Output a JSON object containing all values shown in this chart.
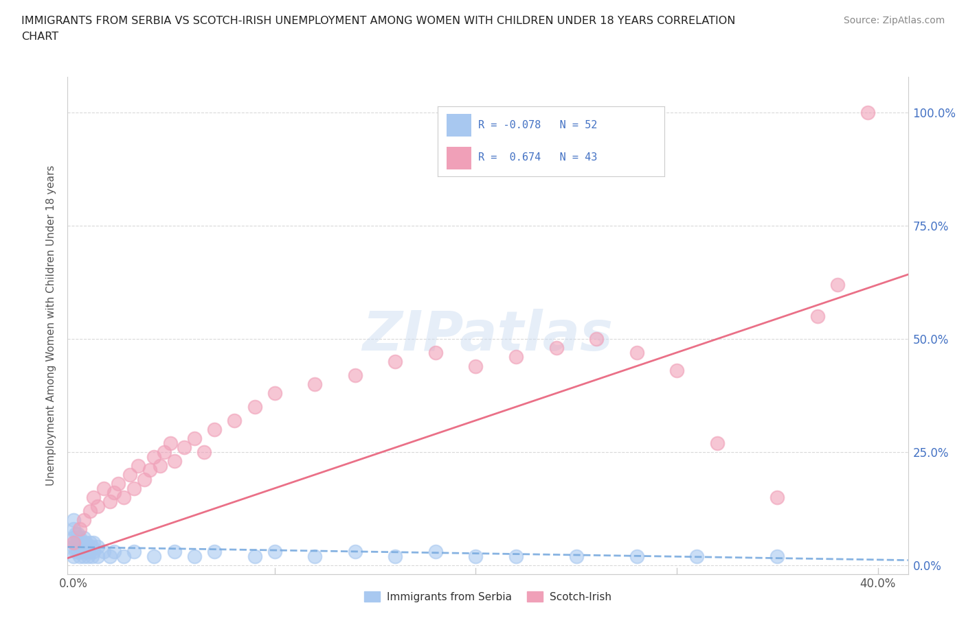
{
  "title_line1": "IMMIGRANTS FROM SERBIA VS SCOTCH-IRISH UNEMPLOYMENT AMONG WOMEN WITH CHILDREN UNDER 18 YEARS CORRELATION",
  "title_line2": "CHART",
  "source_text": "Source: ZipAtlas.com",
  "ylabel": "Unemployment Among Women with Children Under 18 years",
  "watermark": "ZIPatlas",
  "serbia_color": "#a8c8f0",
  "scotch_color": "#f0a0b8",
  "serbia_line_color": "#7aabdf",
  "scotch_line_color": "#e8607a",
  "legend_r_color": "#4472c4",
  "serbia_R": -0.078,
  "serbia_N": 52,
  "scotch_R": 0.674,
  "scotch_N": 43,
  "serbia_label": "Immigrants from Serbia",
  "scotch_label": "Scotch-Irish",
  "xlim_min": -0.003,
  "xlim_max": 0.415,
  "ylim_min": -0.02,
  "ylim_max": 1.08,
  "ytick_vals": [
    0.0,
    0.25,
    0.5,
    0.75,
    1.0
  ],
  "ytick_labels_right": [
    "0.0%",
    "25.0%",
    "50.0%",
    "75.0%",
    "100.0%"
  ],
  "xtick_vals": [
    0.0,
    0.1,
    0.2,
    0.3,
    0.4
  ],
  "xtick_labels": [
    "0.0%",
    "",
    "",
    "",
    "40.0%"
  ],
  "serbia_x": [
    0.0,
    0.0,
    0.0,
    0.0,
    0.0,
    0.001,
    0.001,
    0.001,
    0.002,
    0.002,
    0.002,
    0.003,
    0.003,
    0.003,
    0.004,
    0.004,
    0.005,
    0.005,
    0.005,
    0.006,
    0.006,
    0.007,
    0.007,
    0.008,
    0.008,
    0.009,
    0.009,
    0.01,
    0.01,
    0.012,
    0.012,
    0.015,
    0.018,
    0.02,
    0.025,
    0.03,
    0.04,
    0.05,
    0.06,
    0.07,
    0.09,
    0.1,
    0.12,
    0.14,
    0.16,
    0.18,
    0.2,
    0.22,
    0.25,
    0.28,
    0.31,
    0.35
  ],
  "serbia_y": [
    0.02,
    0.04,
    0.06,
    0.08,
    0.1,
    0.03,
    0.05,
    0.07,
    0.03,
    0.05,
    0.07,
    0.02,
    0.04,
    0.06,
    0.03,
    0.05,
    0.02,
    0.04,
    0.06,
    0.03,
    0.05,
    0.02,
    0.04,
    0.03,
    0.05,
    0.02,
    0.04,
    0.03,
    0.05,
    0.02,
    0.04,
    0.03,
    0.02,
    0.03,
    0.02,
    0.03,
    0.02,
    0.03,
    0.02,
    0.03,
    0.02,
    0.03,
    0.02,
    0.03,
    0.02,
    0.03,
    0.02,
    0.02,
    0.02,
    0.02,
    0.02,
    0.02
  ],
  "scotch_x": [
    0.0,
    0.003,
    0.005,
    0.008,
    0.01,
    0.012,
    0.015,
    0.018,
    0.02,
    0.022,
    0.025,
    0.028,
    0.03,
    0.032,
    0.035,
    0.038,
    0.04,
    0.043,
    0.045,
    0.048,
    0.05,
    0.055,
    0.06,
    0.065,
    0.07,
    0.08,
    0.09,
    0.1,
    0.12,
    0.14,
    0.16,
    0.18,
    0.2,
    0.22,
    0.24,
    0.26,
    0.28,
    0.3,
    0.32,
    0.35,
    0.37,
    0.38,
    0.395
  ],
  "scotch_y": [
    0.05,
    0.08,
    0.1,
    0.12,
    0.15,
    0.13,
    0.17,
    0.14,
    0.16,
    0.18,
    0.15,
    0.2,
    0.17,
    0.22,
    0.19,
    0.21,
    0.24,
    0.22,
    0.25,
    0.27,
    0.23,
    0.26,
    0.28,
    0.25,
    0.3,
    0.32,
    0.35,
    0.38,
    0.4,
    0.42,
    0.45,
    0.47,
    0.44,
    0.46,
    0.48,
    0.5,
    0.47,
    0.43,
    0.27,
    0.15,
    0.55,
    0.62,
    1.0
  ],
  "grid_color": "#d0d0d0",
  "spine_color": "#cccccc",
  "tick_label_color": "#4472c4",
  "axis_label_color": "#555555",
  "title_color": "#222222",
  "source_color": "#888888"
}
